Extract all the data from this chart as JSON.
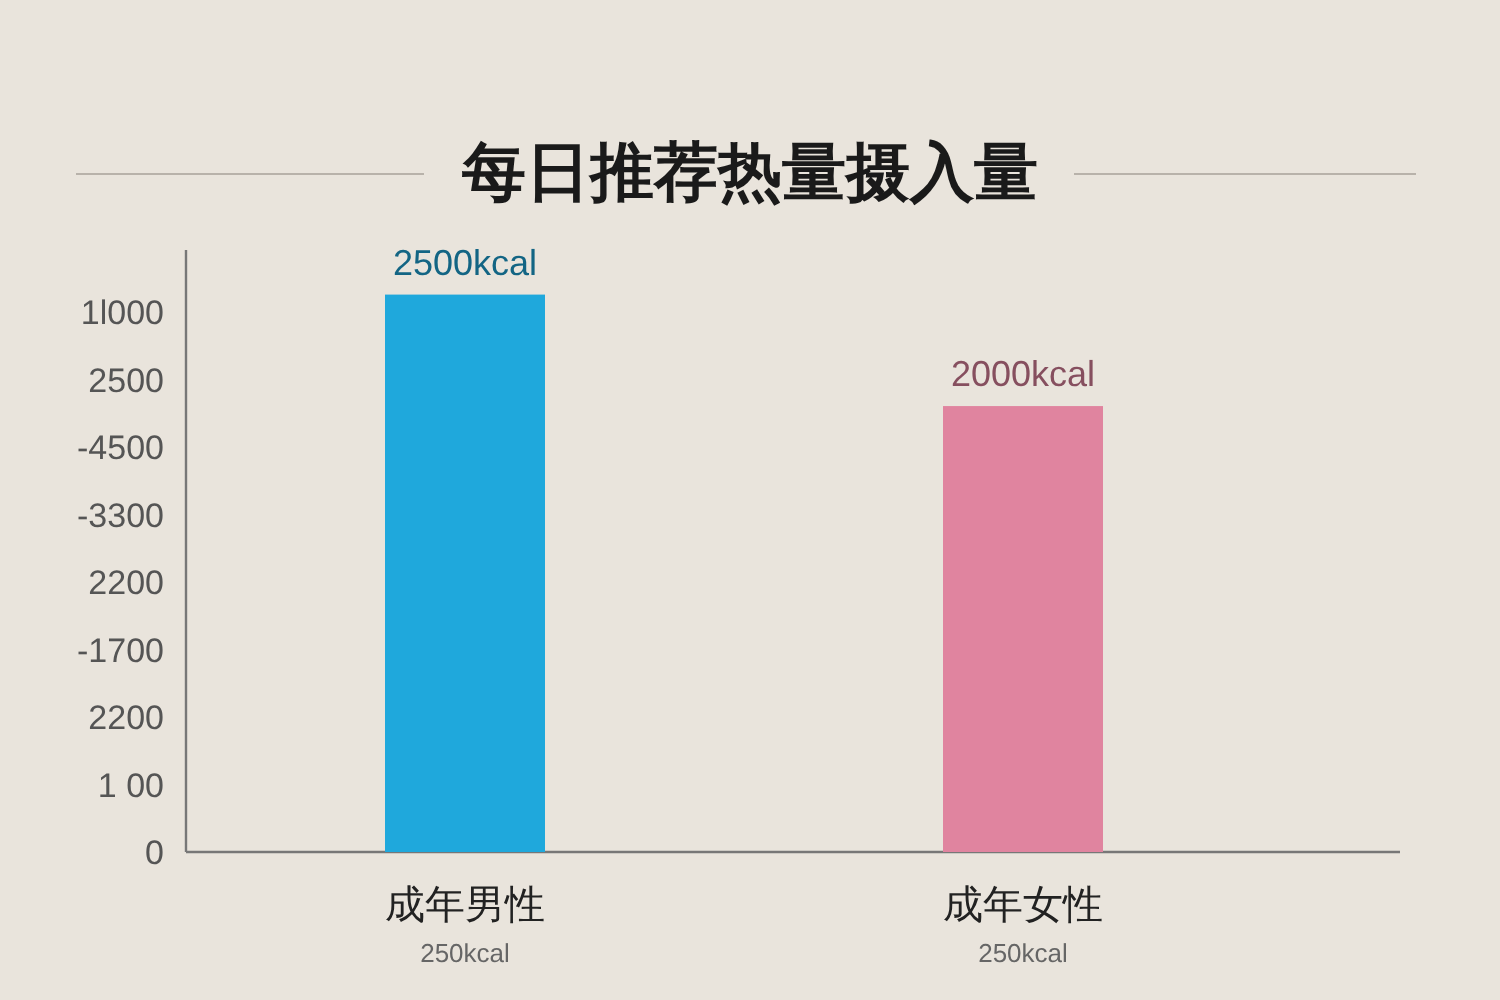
{
  "chart_data": {
    "type": "bar",
    "title": "每日推荐热量摄入量",
    "categories": [
      "成年男性",
      "成年女性"
    ],
    "values": [
      2500,
      2000
    ],
    "colors": [
      "#1fa8dc",
      "#e0849f"
    ],
    "value_labels": [
      "2500kcal",
      "2000kcal"
    ],
    "annotations": [
      "1l000",
      "2500",
      "-4500",
      "-3300",
      "2200",
      "-1700",
      "2200",
      "1 00",
      "0",
      "250kcal",
      "250kcal"
    ]
  }
}
